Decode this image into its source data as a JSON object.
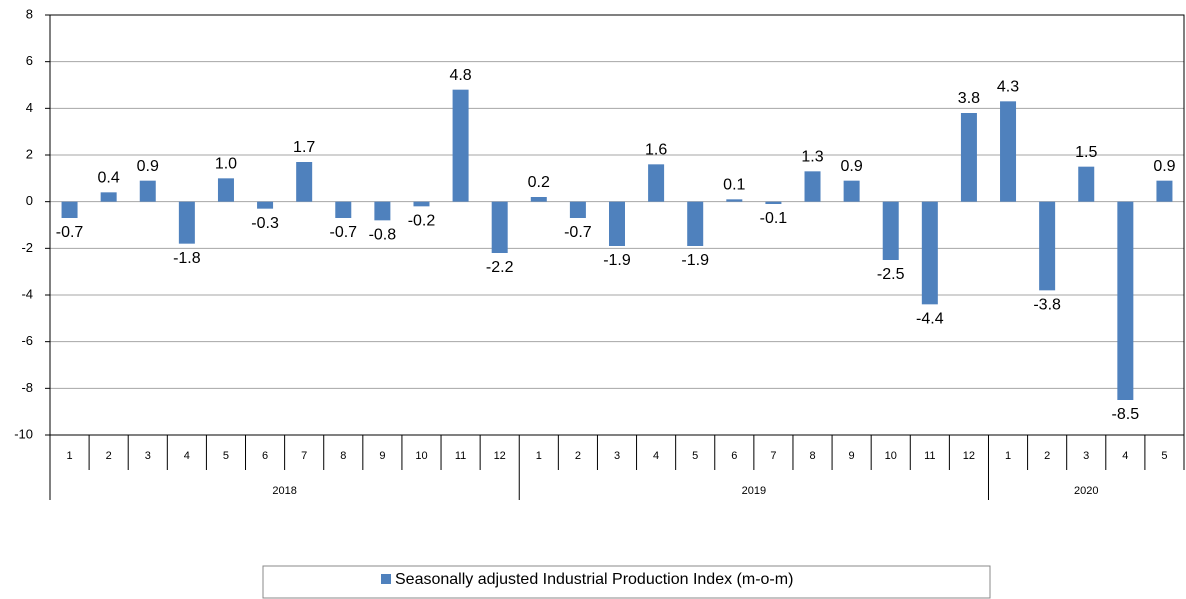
{
  "chart_data": {
    "type": "bar",
    "groups": [
      {
        "label": "2018",
        "months": [
          "1",
          "2",
          "3",
          "4",
          "5",
          "6",
          "7",
          "8",
          "9",
          "10",
          "11",
          "12"
        ]
      },
      {
        "label": "2019",
        "months": [
          "1",
          "2",
          "3",
          "4",
          "5",
          "6",
          "7",
          "8",
          "9",
          "10",
          "11",
          "12"
        ]
      },
      {
        "label": "2020",
        "months": [
          "1",
          "2",
          "3",
          "4",
          "5"
        ]
      }
    ],
    "series": [
      {
        "name": "Seasonally adjusted Industrial Production Index (m-o-m)",
        "color": "#4f81bd",
        "values": [
          -0.7,
          0.4,
          0.9,
          -1.8,
          1.0,
          -0.3,
          1.7,
          -0.7,
          -0.8,
          -0.2,
          4.8,
          -2.2,
          0.2,
          -0.7,
          -1.9,
          1.6,
          -1.9,
          0.1,
          -0.1,
          1.3,
          0.9,
          -2.5,
          -4.4,
          3.8,
          4.3,
          -3.8,
          1.5,
          -8.5,
          0.9
        ],
        "value_labels": [
          "-0.7",
          "0.4",
          "0.9",
          "-1.8",
          "1.0",
          "-0.3",
          "1.7",
          "-0.7",
          "-0.8",
          "-0.2",
          "4.8",
          "-2.2",
          "0.2",
          "-0.7",
          "-1.9",
          "1.6",
          "-1.9",
          "0.1",
          "-0.1",
          "1.3",
          "0.9",
          "-2.5",
          "-4.4",
          "3.8",
          "4.3",
          "-3.8",
          "1.5",
          "-8.5",
          "0.9"
        ]
      }
    ],
    "ylim": [
      -10,
      8
    ],
    "yticks": [
      -10,
      -8,
      -6,
      -4,
      -2,
      0,
      2,
      4,
      6,
      8
    ],
    "grid": true,
    "legend": "bottom"
  }
}
